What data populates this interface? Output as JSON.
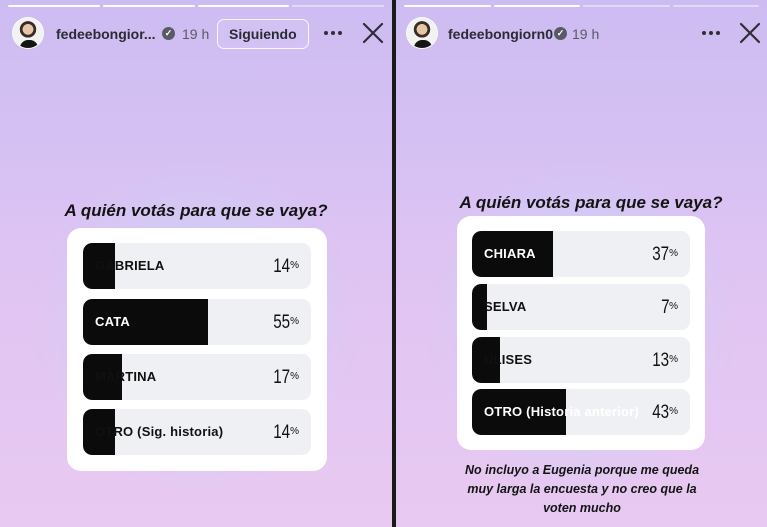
{
  "left_story": {
    "username": "fedeebongior...",
    "time": "19 h",
    "follow_label": "Siguiendo",
    "question": "A quién votás para que se vaya?",
    "options": [
      {
        "label": "GABRIELA",
        "percent": 14,
        "pct_text": "14",
        "pct_sign": "%"
      },
      {
        "label": "CATA",
        "percent": 55,
        "pct_text": "55",
        "pct_sign": "%"
      },
      {
        "label": "MARTINA",
        "percent": 17,
        "pct_text": "17",
        "pct_sign": "%"
      },
      {
        "label": "OTRO (Sig. historia)",
        "percent": 14,
        "pct_text": "14",
        "pct_sign": "%"
      }
    ]
  },
  "right_story": {
    "username": "fedeebongiorn0",
    "time": "19 h",
    "question": "A quién votás para que se vaya?",
    "options": [
      {
        "label": "CHIARA",
        "percent": 37,
        "pct_text": "37",
        "pct_sign": "%"
      },
      {
        "label": "SELVA",
        "percent": 7,
        "pct_text": "7",
        "pct_sign": "%"
      },
      {
        "label": "ULISES",
        "percent": 13,
        "pct_text": "13",
        "pct_sign": "%"
      },
      {
        "label": "OTRO (Historia anterior)",
        "percent": 43,
        "pct_text": "43",
        "pct_sign": "%"
      }
    ],
    "note": "No incluyo a Eugenia porque me queda muy larga la encuesta y no creo que la voten mucho"
  },
  "icons": {
    "more": "more-horizontal-icon",
    "close": "close-icon",
    "verified": "verified-badge-icon"
  },
  "colors": {
    "poll_fill": "#0b0b0b",
    "poll_track": "#eef0f3",
    "card": "#ffffff"
  }
}
